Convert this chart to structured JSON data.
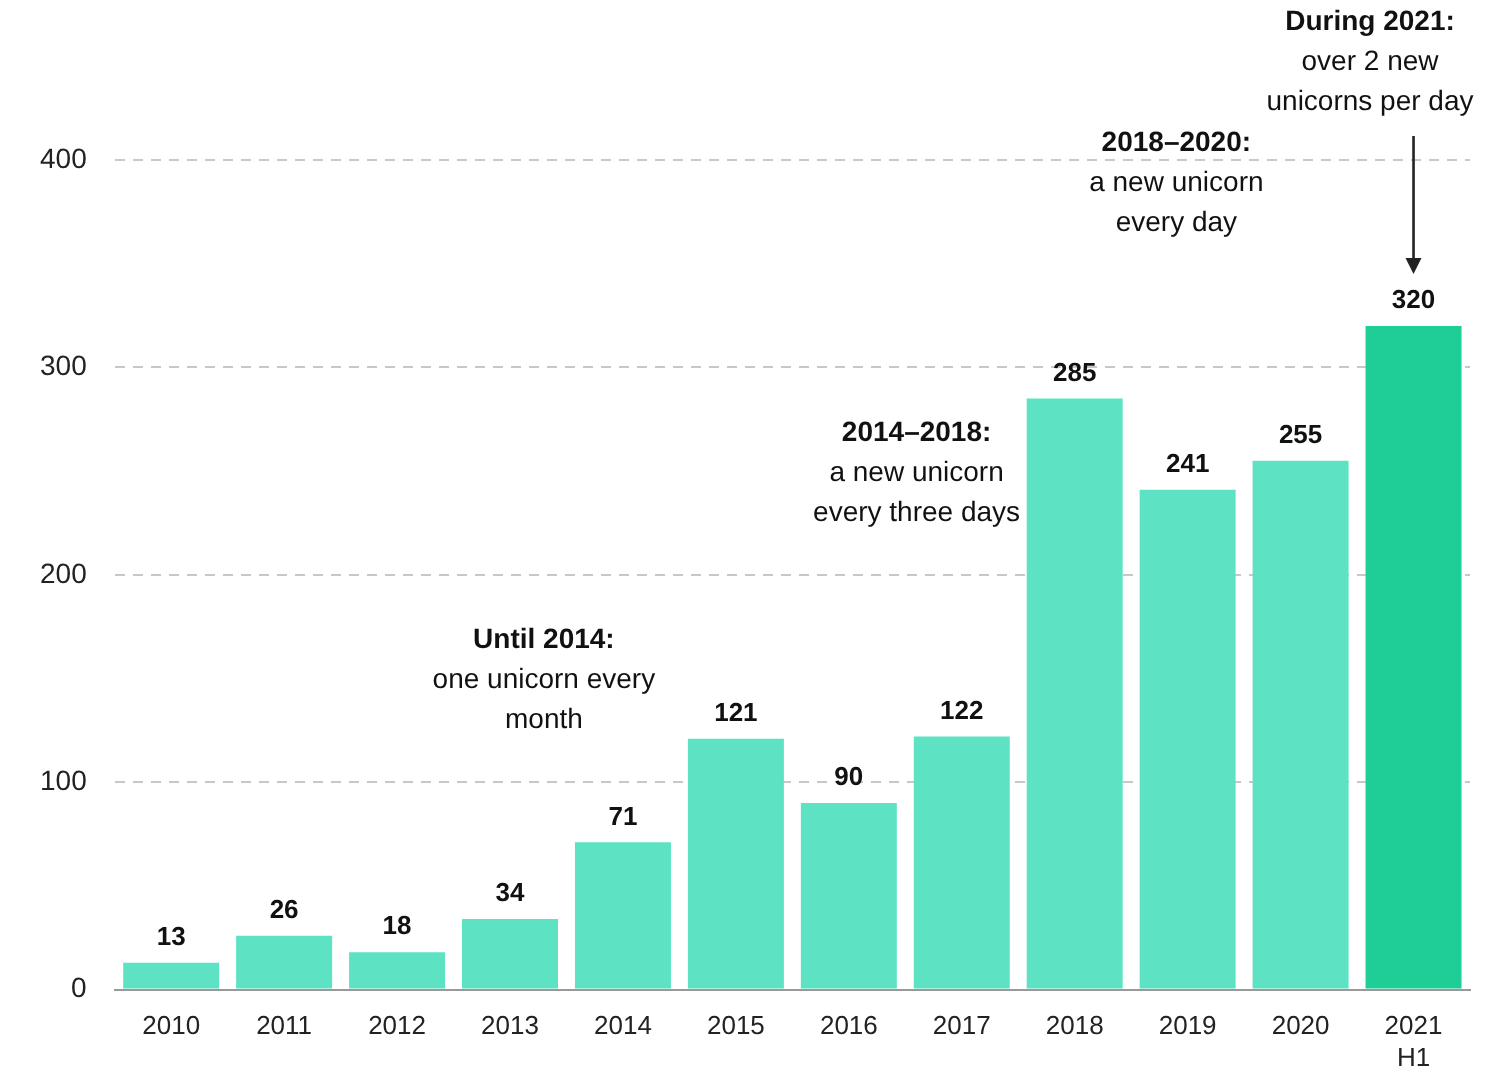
{
  "chart_data": {
    "type": "bar",
    "categories": [
      "2010",
      "2011",
      "2012",
      "2013",
      "2014",
      "2015",
      "2016",
      "2017",
      "2018",
      "2019",
      "2020",
      "2021\nH1"
    ],
    "values": [
      13,
      26,
      18,
      34,
      71,
      121,
      90,
      122,
      285,
      241,
      255,
      320
    ],
    "colors": [
      "#5de3c3",
      "#5de3c3",
      "#5de3c3",
      "#5de3c3",
      "#5de3c3",
      "#5de3c3",
      "#5de3c3",
      "#5de3c3",
      "#5de3c3",
      "#5de3c3",
      "#5de3c3",
      "#1fce96"
    ],
    "ylim": [
      0,
      400
    ],
    "yticks": [
      0,
      100,
      200,
      300,
      400
    ],
    "grid": "y",
    "legend": false,
    "data_labels": true,
    "annotations": [
      "Until 2014:\none unicorn every\nmonth",
      "2014–2018:\na new unicorn\nevery three days",
      "2018–2020:\na new unicorn\nevery day",
      "During 2021:\nover 2 new\nunicorns per day"
    ]
  }
}
